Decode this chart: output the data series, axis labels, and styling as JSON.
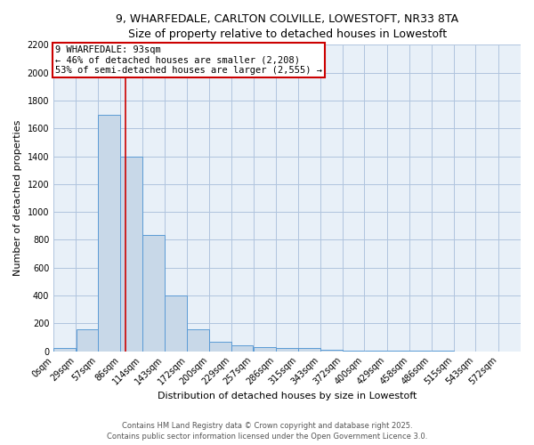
{
  "title_line1": "9, WHARFEDALE, CARLTON COLVILLE, LOWESTOFT, NR33 8TA",
  "title_line2": "Size of property relative to detached houses in Lowestoft",
  "xlabel": "Distribution of detached houses by size in Lowestoft",
  "ylabel": "Number of detached properties",
  "bin_labels": [
    "0sqm",
    "29sqm",
    "57sqm",
    "86sqm",
    "114sqm",
    "143sqm",
    "172sqm",
    "200sqm",
    "229sqm",
    "257sqm",
    "286sqm",
    "315sqm",
    "343sqm",
    "372sqm",
    "400sqm",
    "429sqm",
    "458sqm",
    "486sqm",
    "515sqm",
    "543sqm",
    "572sqm"
  ],
  "bin_edges": [
    0,
    29,
    57,
    86,
    114,
    143,
    172,
    200,
    229,
    257,
    286,
    315,
    343,
    372,
    400,
    429,
    458,
    486,
    515,
    543,
    572,
    601
  ],
  "bar_heights": [
    20,
    155,
    1700,
    1400,
    835,
    400,
    160,
    70,
    45,
    30,
    25,
    25,
    10,
    5,
    2,
    2,
    1,
    1,
    0,
    0,
    0
  ],
  "bar_color": "#c8d8e8",
  "bar_edge_color": "#5b9bd5",
  "property_size": 93,
  "vline_color": "#cc0000",
  "annotation_line1": "9 WHARFEDALE: 93sqm",
  "annotation_line2": "← 46% of detached houses are smaller (2,208)",
  "annotation_line3": "53% of semi-detached houses are larger (2,555) →",
  "annotation_box_color": "#ffffff",
  "annotation_box_edge_color": "#cc0000",
  "ylim": [
    0,
    2200
  ],
  "yticks": [
    0,
    200,
    400,
    600,
    800,
    1000,
    1200,
    1400,
    1600,
    1800,
    2000,
    2200
  ],
  "grid_color": "#b0c4de",
  "bg_color": "#e8f0f8",
  "footer_line1": "Contains HM Land Registry data © Crown copyright and database right 2025.",
  "footer_line2": "Contains public sector information licensed under the Open Government Licence 3.0.",
  "title_fontsize": 9,
  "axis_label_fontsize": 8,
  "tick_fontsize": 7,
  "annotation_fontsize": 7.5,
  "footer_fontsize": 6
}
